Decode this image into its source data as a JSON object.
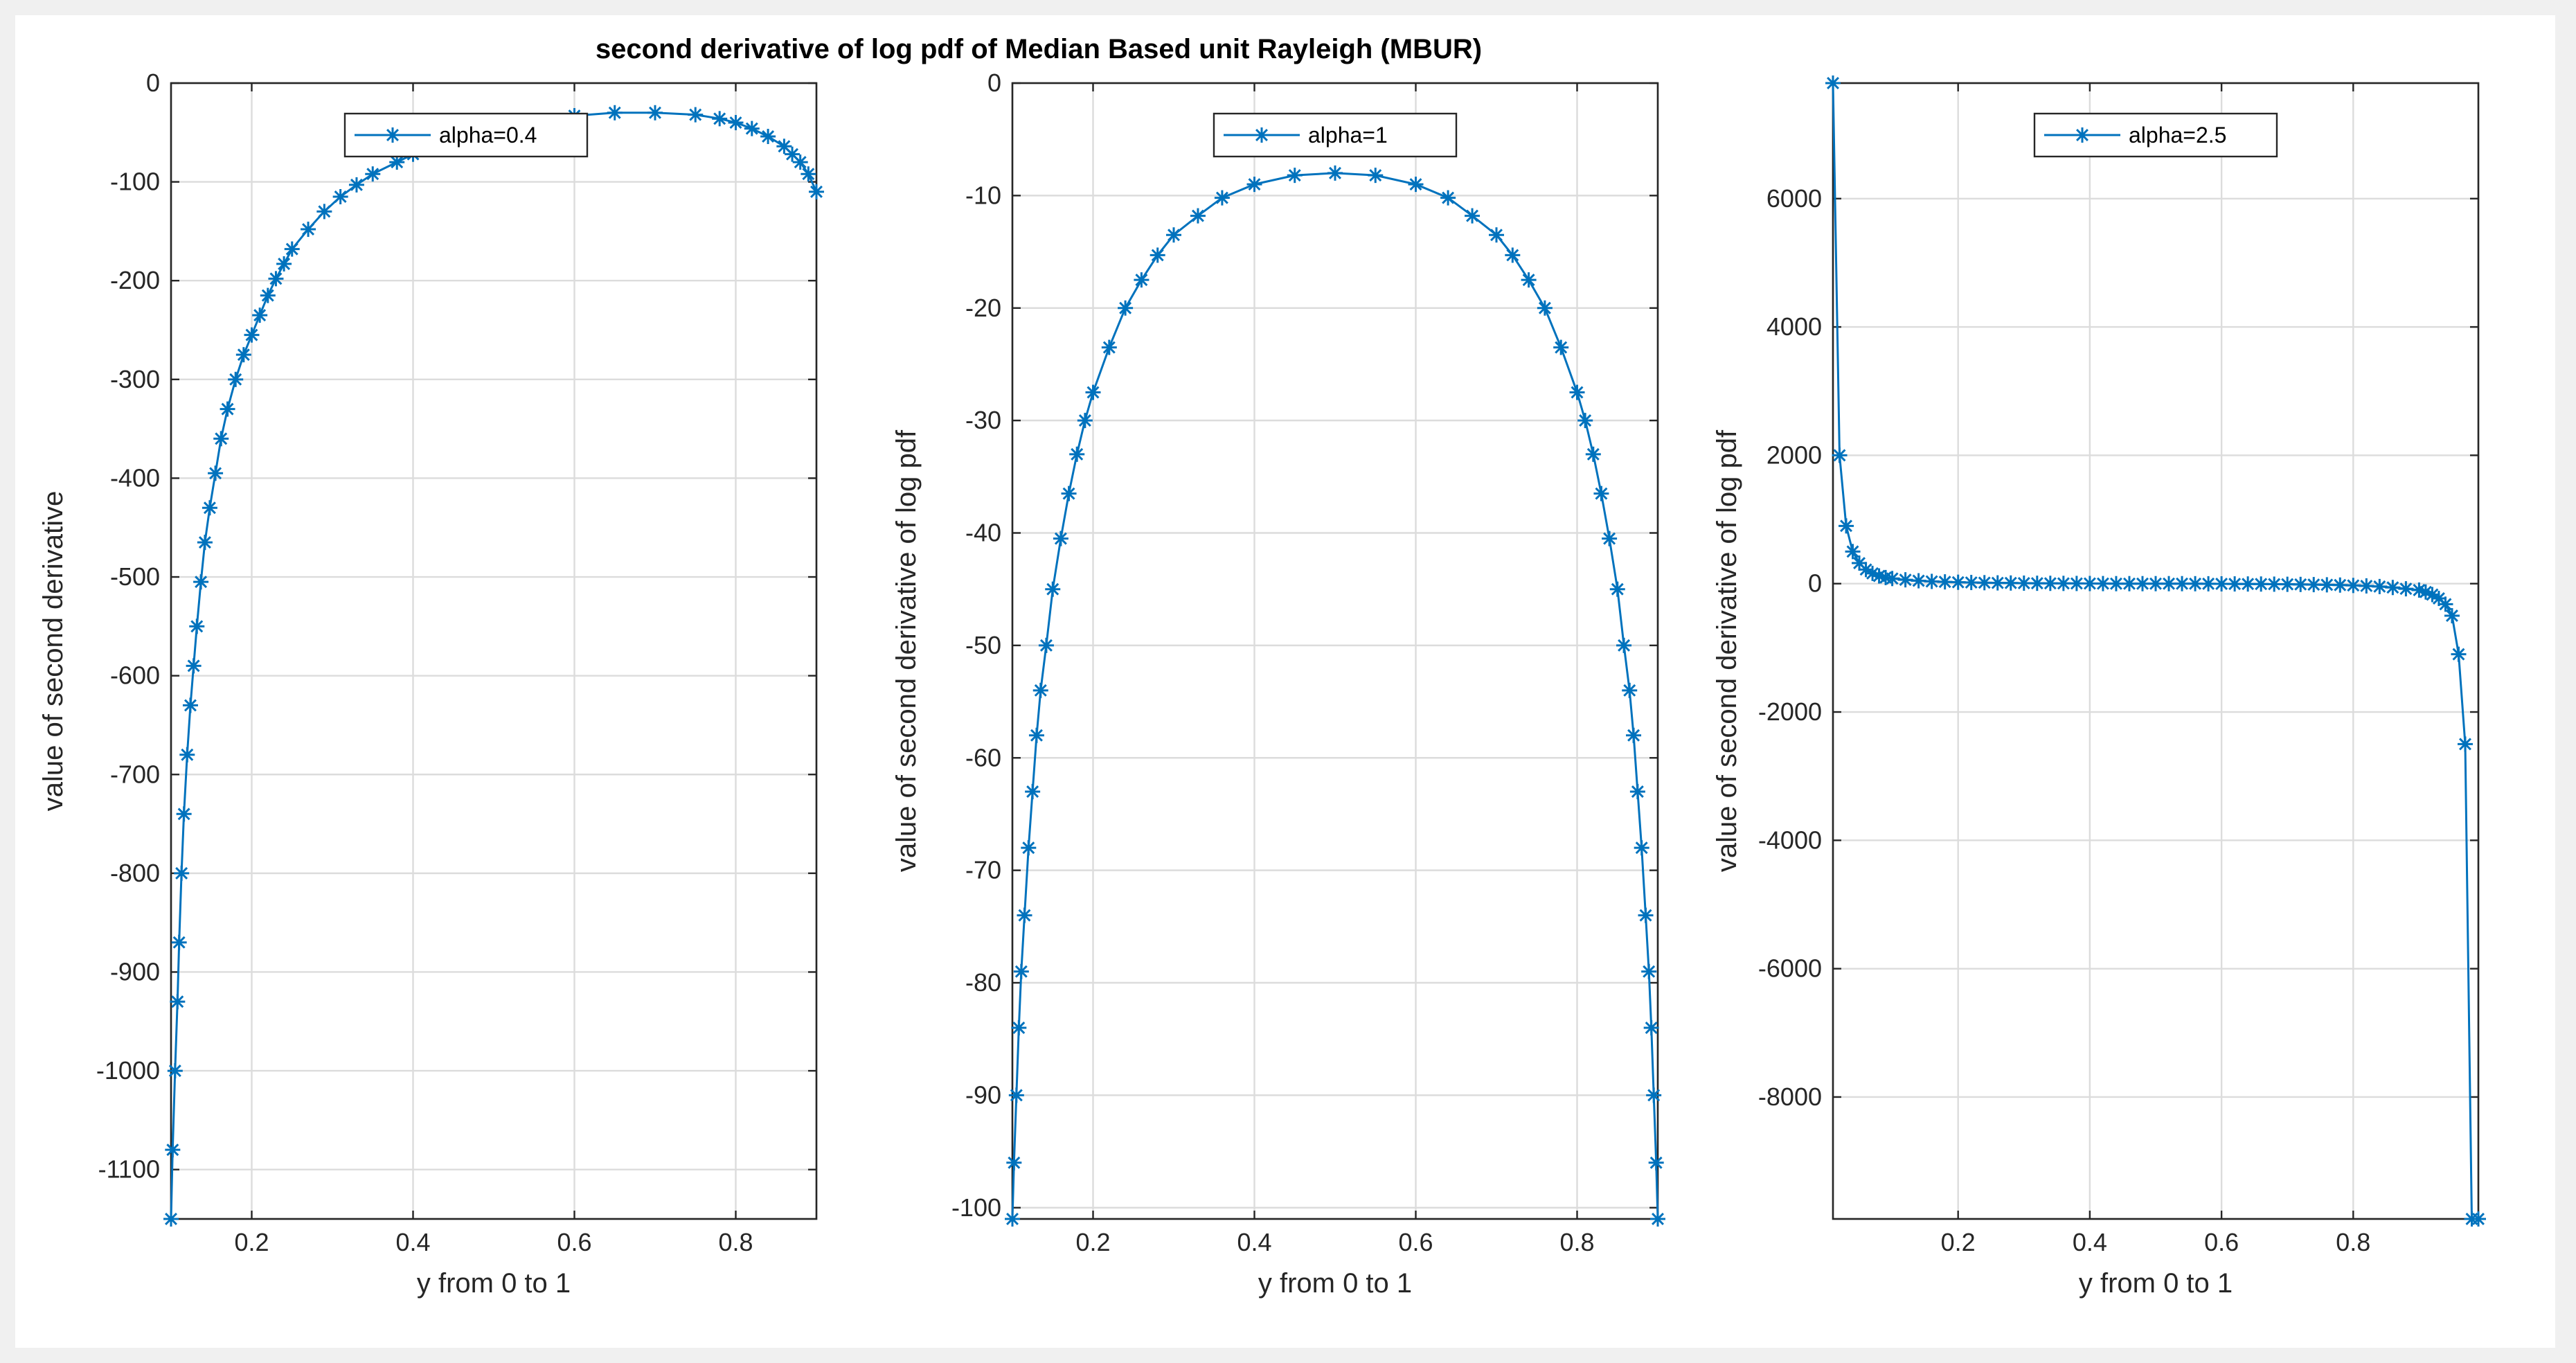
{
  "title": "second derivative of log pdf of Median Based unit Rayleigh (MBUR)",
  "colors": {
    "series": "#0072BD",
    "axis": "#262626",
    "grid": "#dcdcdc",
    "figure_bg": "#f0f0f0"
  },
  "chart_data": [
    {
      "type": "line",
      "marker": "asterisk",
      "xlabel": "y from 0 to 1",
      "ylabel": "value of second derivative",
      "xlim": [
        0.1,
        0.9
      ],
      "ylim": [
        -1150,
        0
      ],
      "xticks": [
        0.2,
        0.4,
        0.6,
        0.8
      ],
      "xtick_labels": [
        "0.2",
        "0.4",
        "0.6",
        "0.8"
      ],
      "yticks": [
        0,
        -100,
        -200,
        -300,
        -400,
        -500,
        -600,
        -700,
        -800,
        -900,
        -1000,
        -1100
      ],
      "ytick_labels": [
        "0",
        "-100",
        "-200",
        "-300",
        "-400",
        "-500",
        "-600",
        "-700",
        "-800",
        "-900",
        "-1000",
        "-1100"
      ],
      "grid": true,
      "legend_position": "top-center",
      "series": [
        {
          "name": "alpha=0.4",
          "x": [
            0.1,
            0.102,
            0.105,
            0.108,
            0.11,
            0.113,
            0.116,
            0.12,
            0.124,
            0.128,
            0.132,
            0.137,
            0.142,
            0.148,
            0.155,
            0.162,
            0.17,
            0.18,
            0.19,
            0.2,
            0.21,
            0.22,
            0.23,
            0.24,
            0.25,
            0.27,
            0.29,
            0.31,
            0.33,
            0.35,
            0.38,
            0.4,
            0.45,
            0.5,
            0.55,
            0.6,
            0.65,
            0.7,
            0.75,
            0.78,
            0.8,
            0.82,
            0.84,
            0.86,
            0.87,
            0.88,
            0.89,
            0.9
          ],
          "y": [
            -1150,
            -1080,
            -1000,
            -930,
            -870,
            -800,
            -740,
            -680,
            -630,
            -590,
            -550,
            -505,
            -465,
            -430,
            -395,
            -360,
            -330,
            -300,
            -275,
            -255,
            -235,
            -215,
            -198,
            -183,
            -168,
            -148,
            -130,
            -115,
            -103,
            -92,
            -80,
            -72,
            -58,
            -46,
            -38,
            -33,
            -30,
            -30,
            -32,
            -36,
            -40,
            -46,
            -54,
            -64,
            -72,
            -80,
            -92,
            -110
          ]
        }
      ]
    },
    {
      "type": "line",
      "marker": "asterisk",
      "xlabel": "y from 0 to 1",
      "ylabel": "value of second derivative of log pdf",
      "xlim": [
        0.1,
        0.9
      ],
      "ylim": [
        -101,
        0
      ],
      "xticks": [
        0.2,
        0.4,
        0.6,
        0.8
      ],
      "xtick_labels": [
        "0.2",
        "0.4",
        "0.6",
        "0.8"
      ],
      "yticks": [
        0,
        -10,
        -20,
        -30,
        -40,
        -50,
        -60,
        -70,
        -80,
        -90,
        -100
      ],
      "ytick_labels": [
        "0",
        "-10",
        "-20",
        "-30",
        "-40",
        "-50",
        "-60",
        "-70",
        "-80",
        "-90",
        "-100"
      ],
      "grid": true,
      "legend_position": "top-center",
      "series": [
        {
          "name": "alpha=1",
          "x": [
            0.1,
            0.102,
            0.105,
            0.108,
            0.111,
            0.115,
            0.12,
            0.125,
            0.13,
            0.135,
            0.142,
            0.15,
            0.16,
            0.17,
            0.18,
            0.19,
            0.2,
            0.22,
            0.24,
            0.26,
            0.28,
            0.3,
            0.33,
            0.36,
            0.4,
            0.45,
            0.5,
            0.55,
            0.6,
            0.64,
            0.67,
            0.7,
            0.72,
            0.74,
            0.76,
            0.78,
            0.8,
            0.81,
            0.82,
            0.83,
            0.84,
            0.85,
            0.858,
            0.865,
            0.87,
            0.875,
            0.88,
            0.885,
            0.889,
            0.892,
            0.895,
            0.898,
            0.9
          ],
          "y": [
            -101,
            -96,
            -90,
            -84,
            -79,
            -74,
            -68,
            -63,
            -58,
            -54,
            -50,
            -45,
            -40.5,
            -36.5,
            -33,
            -30,
            -27.5,
            -23.5,
            -20,
            -17.5,
            -15.3,
            -13.5,
            -11.8,
            -10.2,
            -9,
            -8.2,
            -8,
            -8.2,
            -9,
            -10.2,
            -11.8,
            -13.5,
            -15.3,
            -17.5,
            -20,
            -23.5,
            -27.5,
            -30,
            -33,
            -36.5,
            -40.5,
            -45,
            -50,
            -54,
            -58,
            -63,
            -68,
            -74,
            -79,
            -84,
            -90,
            -96,
            -101
          ]
        }
      ]
    },
    {
      "type": "line",
      "marker": "asterisk",
      "xlabel": "y from 0 to 1",
      "ylabel": "value of second derivative of log pdf",
      "xlim": [
        0.01,
        0.99
      ],
      "ylim": [
        -9900,
        7800
      ],
      "xticks": [
        0.2,
        0.4,
        0.6,
        0.8
      ],
      "xtick_labels": [
        "0.2",
        "0.4",
        "0.6",
        "0.8"
      ],
      "yticks": [
        6000,
        4000,
        2000,
        0,
        -2000,
        -4000,
        -6000,
        -8000
      ],
      "ytick_labels": [
        "6000",
        "4000",
        "2000",
        "0",
        "-2000",
        "-4000",
        "-6000",
        "-8000"
      ],
      "grid": true,
      "legend_position": "top-center",
      "series": [
        {
          "name": "alpha=2.5",
          "x": [
            0.01,
            0.02,
            0.03,
            0.04,
            0.05,
            0.06,
            0.07,
            0.08,
            0.09,
            0.1,
            0.12,
            0.14,
            0.16,
            0.18,
            0.2,
            0.22,
            0.24,
            0.26,
            0.28,
            0.3,
            0.32,
            0.34,
            0.36,
            0.38,
            0.4,
            0.42,
            0.44,
            0.46,
            0.48,
            0.5,
            0.52,
            0.54,
            0.56,
            0.58,
            0.6,
            0.62,
            0.64,
            0.66,
            0.68,
            0.7,
            0.72,
            0.74,
            0.76,
            0.78,
            0.8,
            0.82,
            0.84,
            0.86,
            0.88,
            0.9,
            0.91,
            0.92,
            0.93,
            0.94,
            0.95,
            0.96,
            0.97,
            0.98,
            0.99
          ],
          "y": [
            7800,
            2000,
            900,
            500,
            320,
            220,
            160,
            120,
            95,
            80,
            60,
            45,
            35,
            28,
            22,
            18,
            15,
            12,
            10,
            8,
            6,
            5,
            4,
            3,
            2,
            1,
            0,
            0,
            0,
            0,
            0,
            0,
            -1,
            -2,
            -3,
            -4,
            -5,
            -6,
            -8,
            -10,
            -12,
            -15,
            -18,
            -22,
            -28,
            -35,
            -45,
            -60,
            -80,
            -100,
            -130,
            -170,
            -230,
            -320,
            -500,
            -1100,
            -2500,
            -9900,
            -9900
          ]
        }
      ]
    }
  ]
}
